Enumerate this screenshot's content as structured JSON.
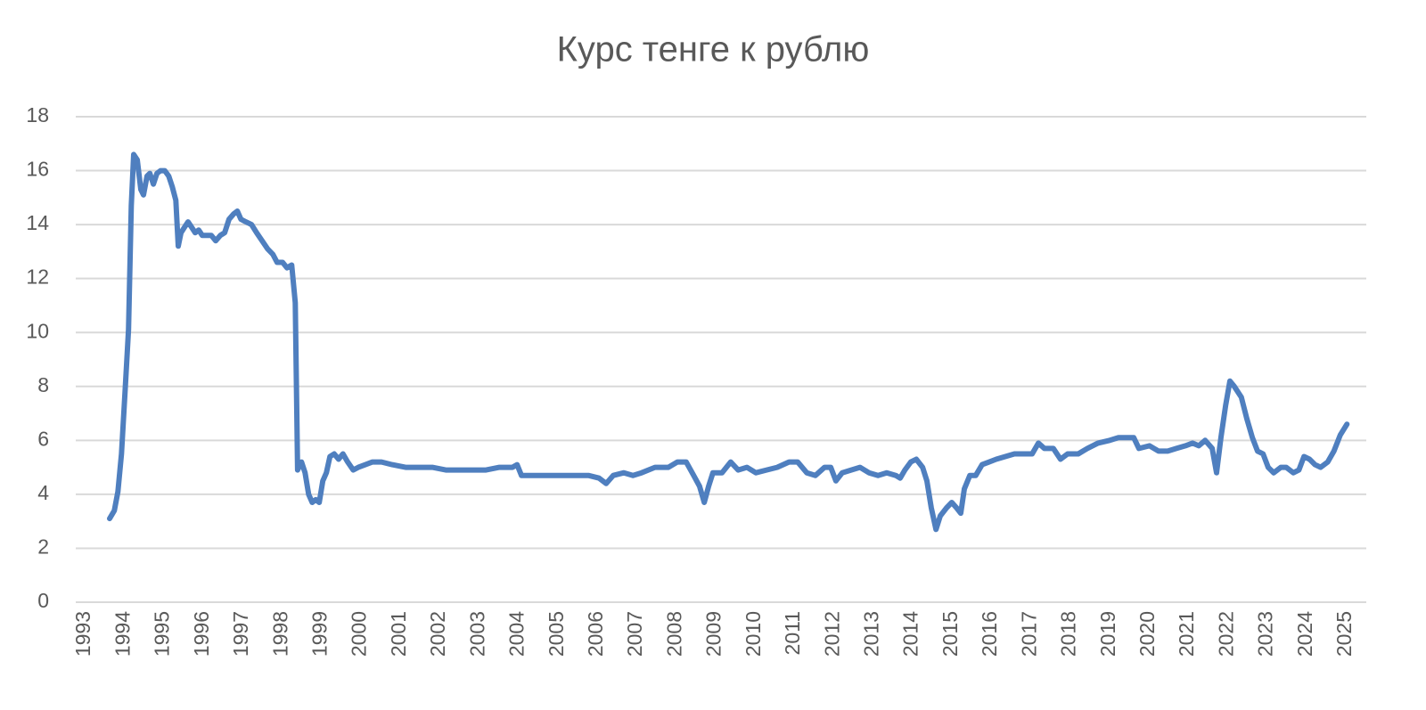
{
  "chart_data": {
    "type": "line",
    "title": "Курс тенге к рублю",
    "x": [
      1993.63,
      1993.75,
      1993.84,
      1993.93,
      1994.02,
      1994.11,
      1994.18,
      1994.24,
      1994.33,
      1994.42,
      1994.49,
      1994.58,
      1994.65,
      1994.74,
      1994.83,
      1994.92,
      1995.03,
      1995.13,
      1995.22,
      1995.31,
      1995.37,
      1995.44,
      1995.53,
      1995.62,
      1995.71,
      1995.8,
      1995.89,
      1995.98,
      1996.1,
      1996.21,
      1996.32,
      1996.44,
      1996.55,
      1996.66,
      1996.78,
      1996.87,
      1996.96,
      1997.09,
      1997.23,
      1997.36,
      1997.5,
      1997.64,
      1997.77,
      1997.88,
      1998.02,
      1998.13,
      1998.25,
      1998.34,
      1998.4,
      1998.5,
      1998.59,
      1998.68,
      1998.77,
      1998.86,
      1998.95,
      1999.04,
      1999.13,
      1999.22,
      1999.33,
      1999.44,
      1999.55,
      1999.67,
      1999.81,
      1999.94,
      2000.12,
      2000.3,
      2000.53,
      2000.8,
      2001.14,
      2001.48,
      2001.82,
      2002.16,
      2002.5,
      2002.79,
      2003.18,
      2003.52,
      2003.85,
      2003.97,
      2004.08,
      2004.42,
      2004.76,
      2005.1,
      2005.44,
      2005.78,
      2006.05,
      2006.23,
      2006.41,
      2006.68,
      2006.91,
      2007.13,
      2007.47,
      2007.81,
      2008.04,
      2008.26,
      2008.45,
      2008.6,
      2008.72,
      2008.83,
      2008.94,
      2009.17,
      2009.39,
      2009.58,
      2009.8,
      2010.03,
      2010.3,
      2010.57,
      2010.87,
      2011.09,
      2011.32,
      2011.54,
      2011.77,
      2011.93,
      2012.06,
      2012.22,
      2012.45,
      2012.67,
      2012.9,
      2013.13,
      2013.35,
      2013.58,
      2013.69,
      2013.81,
      2013.96,
      2014.1,
      2014.26,
      2014.37,
      2014.48,
      2014.6,
      2014.71,
      2014.87,
      2015.0,
      2015.12,
      2015.23,
      2015.32,
      2015.46,
      2015.61,
      2015.77,
      2015.95,
      2016.13,
      2016.36,
      2016.59,
      2016.81,
      2017.04,
      2017.2,
      2017.35,
      2017.58,
      2017.76,
      2017.94,
      2018.21,
      2018.44,
      2018.71,
      2019.01,
      2019.23,
      2019.46,
      2019.62,
      2019.75,
      2020.02,
      2020.25,
      2020.48,
      2020.7,
      2020.93,
      2021.11,
      2021.27,
      2021.43,
      2021.61,
      2021.72,
      2021.83,
      2021.95,
      2022.06,
      2022.17,
      2022.35,
      2022.49,
      2022.63,
      2022.76,
      2022.9,
      2023.03,
      2023.17,
      2023.35,
      2023.49,
      2023.67,
      2023.81,
      2023.94,
      2024.08,
      2024.22,
      2024.36,
      2024.54,
      2024.7,
      2024.86,
      2025.03
    ],
    "series": [
      {
        "color": "#4f7fbf",
        "values": [
          3.1,
          3.4,
          4.1,
          5.5,
          7.8,
          10.1,
          14.7,
          16.6,
          16.4,
          15.3,
          15.1,
          15.8,
          15.9,
          15.5,
          15.9,
          16.0,
          16.0,
          15.8,
          15.4,
          14.9,
          13.2,
          13.7,
          13.9,
          14.1,
          13.9,
          13.7,
          13.8,
          13.6,
          13.6,
          13.6,
          13.4,
          13.6,
          13.7,
          14.2,
          14.4,
          14.5,
          14.2,
          14.1,
          14.0,
          13.7,
          13.4,
          13.1,
          12.9,
          12.6,
          12.6,
          12.4,
          12.5,
          11.1,
          4.9,
          5.2,
          4.8,
          4.0,
          3.7,
          3.8,
          3.7,
          4.5,
          4.8,
          5.4,
          5.5,
          5.3,
          5.5,
          5.2,
          4.9,
          5.0,
          5.1,
          5.2,
          5.2,
          5.1,
          5.0,
          5.0,
          5.0,
          4.9,
          4.9,
          4.9,
          4.9,
          5.0,
          5.0,
          5.1,
          4.7,
          4.7,
          4.7,
          4.7,
          4.7,
          4.7,
          4.6,
          4.4,
          4.7,
          4.8,
          4.7,
          4.8,
          5.0,
          5.0,
          5.2,
          5.2,
          4.7,
          4.3,
          3.7,
          4.3,
          4.8,
          4.8,
          5.2,
          4.9,
          5.0,
          4.8,
          4.9,
          5.0,
          5.2,
          5.2,
          4.8,
          4.7,
          5.0,
          5.0,
          4.5,
          4.8,
          4.9,
          5.0,
          4.8,
          4.7,
          4.8,
          4.7,
          4.6,
          4.9,
          5.2,
          5.3,
          5.0,
          4.5,
          3.5,
          2.7,
          3.2,
          3.5,
          3.7,
          3.5,
          3.3,
          4.2,
          4.7,
          4.7,
          5.1,
          5.2,
          5.3,
          5.4,
          5.5,
          5.5,
          5.5,
          5.9,
          5.7,
          5.7,
          5.3,
          5.5,
          5.5,
          5.7,
          5.9,
          6.0,
          6.1,
          6.1,
          6.1,
          5.7,
          5.8,
          5.6,
          5.6,
          5.7,
          5.8,
          5.9,
          5.8,
          6.0,
          5.7,
          4.8,
          6.1,
          7.3,
          8.2,
          8.0,
          7.6,
          6.8,
          6.1,
          5.6,
          5.5,
          5.0,
          4.8,
          5.0,
          5.0,
          4.8,
          4.9,
          5.4,
          5.3,
          5.1,
          5.0,
          5.2,
          5.6,
          6.2,
          6.6
        ]
      }
    ],
    "xlim": [
      1992.77,
      2025.52
    ],
    "xticks": [
      1993,
      1994,
      1995,
      1996,
      1997,
      1998,
      1999,
      2000,
      2001,
      2002,
      2003,
      2004,
      2005,
      2006,
      2007,
      2008,
      2009,
      2010,
      2011,
      2012,
      2013,
      2014,
      2015,
      2016,
      2017,
      2018,
      2019,
      2020,
      2021,
      2022,
      2023,
      2024,
      2025
    ],
    "ylim": [
      0,
      18
    ],
    "yticks": [
      0,
      2,
      4,
      6,
      8,
      10,
      12,
      14,
      16,
      18
    ],
    "grid": true
  }
}
